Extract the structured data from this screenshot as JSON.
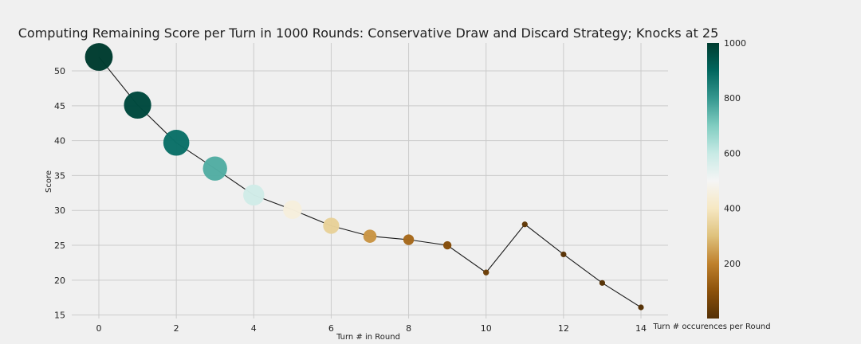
{
  "chart_data": {
    "type": "scatter",
    "title": "Computing Remaining Score per Turn in 1000 Rounds: Conservative Draw and Discard Strategy; Knocks at 25",
    "xlabel": "Turn # in Round",
    "ylabel": "Score",
    "xlim": [
      -0.7,
      14.7
    ],
    "ylim": [
      14.5,
      54
    ],
    "xticks": [
      0,
      2,
      4,
      6,
      8,
      10,
      12,
      14
    ],
    "yticks": [
      15,
      20,
      25,
      30,
      35,
      40,
      45,
      50
    ],
    "grid": true,
    "series": [
      {
        "x": [
          0,
          1,
          2,
          3,
          4,
          5,
          6,
          7,
          8,
          9,
          10,
          11,
          12,
          13,
          14
        ],
        "y": [
          52.0,
          45.1,
          39.7,
          36.0,
          32.2,
          30.1,
          27.8,
          26.3,
          25.8,
          25.0,
          21.1,
          28.0,
          23.7,
          19.6,
          16.1
        ],
        "occurrences": [
          1000,
          970,
          880,
          760,
          580,
          450,
          340,
          230,
          150,
          90,
          45,
          20,
          10,
          5,
          2
        ]
      }
    ],
    "colorbar": {
      "label": "Turn # occurences per Round",
      "range": [
        0,
        1000
      ],
      "ticks": [
        200,
        400,
        600,
        800,
        1000
      ],
      "colormap": [
        "#543005",
        "#8c510a",
        "#bf812d",
        "#dfc27d",
        "#f6e8c3",
        "#f5f5f5",
        "#c7eae5",
        "#80cdc1",
        "#35978f",
        "#01665e",
        "#003c30"
      ]
    }
  }
}
